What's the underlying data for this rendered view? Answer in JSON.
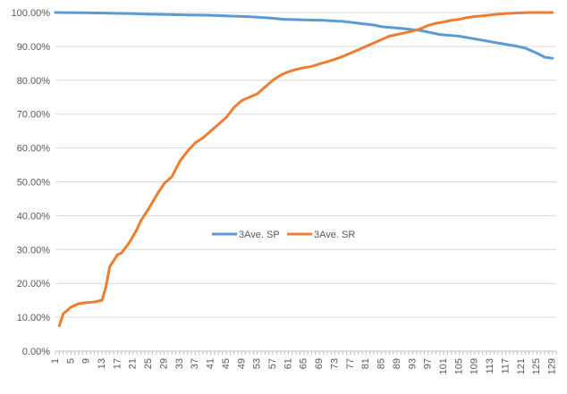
{
  "chart_data": {
    "type": "line",
    "title": "",
    "xlabel": "",
    "ylabel": "",
    "ylim": [
      0,
      1
    ],
    "yticks": [
      "0.00%",
      "10.00%",
      "20.00%",
      "30.00%",
      "40.00%",
      "50.00%",
      "60.00%",
      "70.00%",
      "80.00%",
      "90.00%",
      "100.00%"
    ],
    "xlim": [
      1,
      130
    ],
    "xticks": [
      1,
      5,
      9,
      13,
      17,
      21,
      25,
      29,
      33,
      37,
      41,
      45,
      49,
      53,
      57,
      61,
      65,
      69,
      73,
      77,
      81,
      85,
      89,
      93,
      97,
      101,
      105,
      109,
      113,
      117,
      121,
      125,
      129
    ],
    "grid": "horizontal",
    "legend": "center",
    "series": [
      {
        "name": "3Ave. SP",
        "color": "#5b9bd5",
        "x": [
          1,
          10,
          20,
          25,
          30,
          35,
          40,
          45,
          50,
          55,
          60,
          65,
          70,
          75,
          80,
          83,
          85,
          90,
          95,
          100,
          105,
          110,
          115,
          120,
          122,
          125,
          127,
          129
        ],
        "values": [
          1.0,
          0.999,
          0.997,
          0.995,
          0.994,
          0.993,
          0.992,
          0.99,
          0.988,
          0.985,
          0.98,
          0.978,
          0.977,
          0.974,
          0.967,
          0.963,
          0.958,
          0.953,
          0.947,
          0.935,
          0.93,
          0.92,
          0.91,
          0.9,
          0.895,
          0.88,
          0.868,
          0.865
        ]
      },
      {
        "name": "3Ave. SR",
        "color": "#ed7d31",
        "x": [
          2,
          3,
          5,
          7,
          9,
          11,
          13,
          14,
          15,
          17,
          18,
          20,
          22,
          23,
          25,
          27,
          29,
          31,
          33,
          35,
          37,
          39,
          41,
          43,
          45,
          47,
          49,
          51,
          53,
          55,
          57,
          59,
          61,
          63,
          65,
          67,
          69,
          71,
          73,
          75,
          77,
          79,
          81,
          83,
          85,
          87,
          89,
          91,
          93,
          95,
          97,
          99,
          101,
          103,
          105,
          107,
          109,
          111,
          113,
          115,
          117,
          119,
          121,
          123,
          125,
          127,
          129
        ],
        "values": [
          0.075,
          0.11,
          0.13,
          0.14,
          0.143,
          0.145,
          0.15,
          0.19,
          0.25,
          0.285,
          0.29,
          0.32,
          0.36,
          0.385,
          0.42,
          0.46,
          0.495,
          0.515,
          0.56,
          0.59,
          0.615,
          0.63,
          0.65,
          0.67,
          0.69,
          0.72,
          0.74,
          0.75,
          0.76,
          0.78,
          0.8,
          0.815,
          0.825,
          0.832,
          0.837,
          0.841,
          0.848,
          0.855,
          0.862,
          0.87,
          0.88,
          0.89,
          0.9,
          0.91,
          0.92,
          0.93,
          0.935,
          0.94,
          0.945,
          0.952,
          0.962,
          0.968,
          0.972,
          0.977,
          0.98,
          0.985,
          0.988,
          0.99,
          0.993,
          0.995,
          0.997,
          0.998,
          0.999,
          1.0,
          1.0,
          1.0,
          1.0
        ]
      }
    ]
  }
}
